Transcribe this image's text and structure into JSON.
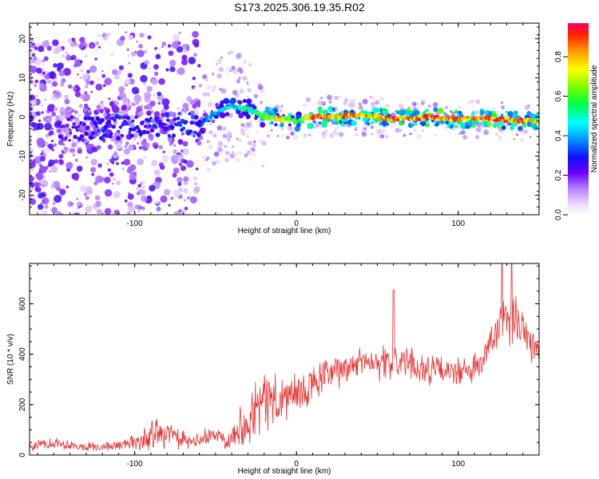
{
  "title": "S173.2025.306.19.35.R02",
  "chart_data": [
    {
      "type": "heatmap",
      "name": "spectrogram",
      "xlabel": "Height of straight line (km)",
      "ylabel": "Frequency (Hz)",
      "xlim": [
        -165,
        150
      ],
      "ylim": [
        -25,
        24
      ],
      "xticks": [
        -100,
        0,
        100
      ],
      "yticks": [
        -20,
        -10,
        0,
        10,
        20
      ],
      "colorbar": {
        "label": "Normalized spectral amplitude",
        "range": [
          0.0,
          0.97
        ],
        "ticks": [
          0.0,
          0.2,
          0.4,
          0.6,
          0.8
        ],
        "tick_labels": [
          "0.0",
          "0.2",
          "0.4",
          "0.6",
          "0.8"
        ]
      },
      "ridge": {
        "x": [
          -140,
          -120,
          -100,
          -80,
          -60,
          -50,
          -40,
          -30,
          -20,
          -10,
          0,
          10,
          20,
          40,
          60,
          80,
          100,
          120,
          140,
          150
        ],
        "freq": [
          -3,
          -3,
          -2,
          -2,
          -2,
          1,
          3,
          2,
          0,
          -0.5,
          -1,
          0,
          0,
          0.5,
          -0.5,
          0,
          -0.5,
          -0.5,
          -1,
          -1
        ],
        "amplitude": [
          0.25,
          0.3,
          0.3,
          0.3,
          0.35,
          0.45,
          0.5,
          0.55,
          0.7,
          0.85,
          0.6,
          0.9,
          0.9,
          0.85,
          0.9,
          0.95,
          0.9,
          0.95,
          0.9,
          0.8
        ]
      }
    },
    {
      "type": "line",
      "name": "snr",
      "xlabel": "Height of straight line (km)",
      "ylabel": "SNR (10 * v/v)",
      "xlim": [
        -165,
        150
      ],
      "ylim": [
        0,
        760
      ],
      "xticks": [
        -100,
        0,
        100
      ],
      "yticks": [
        0,
        200,
        400,
        600
      ],
      "color": "#e8302e",
      "x": [
        -165,
        -160,
        -150,
        -140,
        -130,
        -120,
        -110,
        -100,
        -95,
        -90,
        -85,
        -80,
        -75,
        -70,
        -65,
        -60,
        -55,
        -50,
        -45,
        -40,
        -35,
        -30,
        -25,
        -20,
        -15,
        -10,
        -5,
        0,
        5,
        10,
        15,
        20,
        25,
        30,
        35,
        40,
        45,
        50,
        55,
        60,
        65,
        70,
        75,
        80,
        85,
        90,
        95,
        100,
        105,
        110,
        115,
        120,
        125,
        130,
        135,
        140,
        145,
        150
      ],
      "y": [
        30,
        40,
        50,
        40,
        35,
        30,
        40,
        50,
        60,
        70,
        100,
        90,
        70,
        55,
        50,
        60,
        70,
        80,
        70,
        70,
        110,
        150,
        190,
        210,
        230,
        200,
        240,
        230,
        250,
        280,
        300,
        320,
        330,
        340,
        360,
        370,
        380,
        370,
        360,
        370,
        370,
        360,
        350,
        340,
        340,
        330,
        330,
        330,
        330,
        340,
        360,
        450,
        500,
        520,
        540,
        520,
        450,
        400
      ],
      "noise": [
        18,
        20,
        20,
        18,
        15,
        15,
        18,
        25,
        40,
        50,
        60,
        45,
        35,
        30,
        25,
        25,
        30,
        30,
        30,
        40,
        70,
        90,
        100,
        100,
        100,
        90,
        90,
        80,
        70,
        60,
        60,
        60,
        55,
        50,
        50,
        50,
        50,
        55,
        55,
        55,
        60,
        55,
        50,
        50,
        50,
        45,
        45,
        45,
        45,
        50,
        55,
        65,
        70,
        75,
        80,
        80,
        70,
        65
      ],
      "peaks": [
        {
          "x": 60,
          "y": 655
        },
        {
          "x": 127,
          "y": 760
        },
        {
          "x": 133,
          "y": 760
        }
      ]
    }
  ]
}
